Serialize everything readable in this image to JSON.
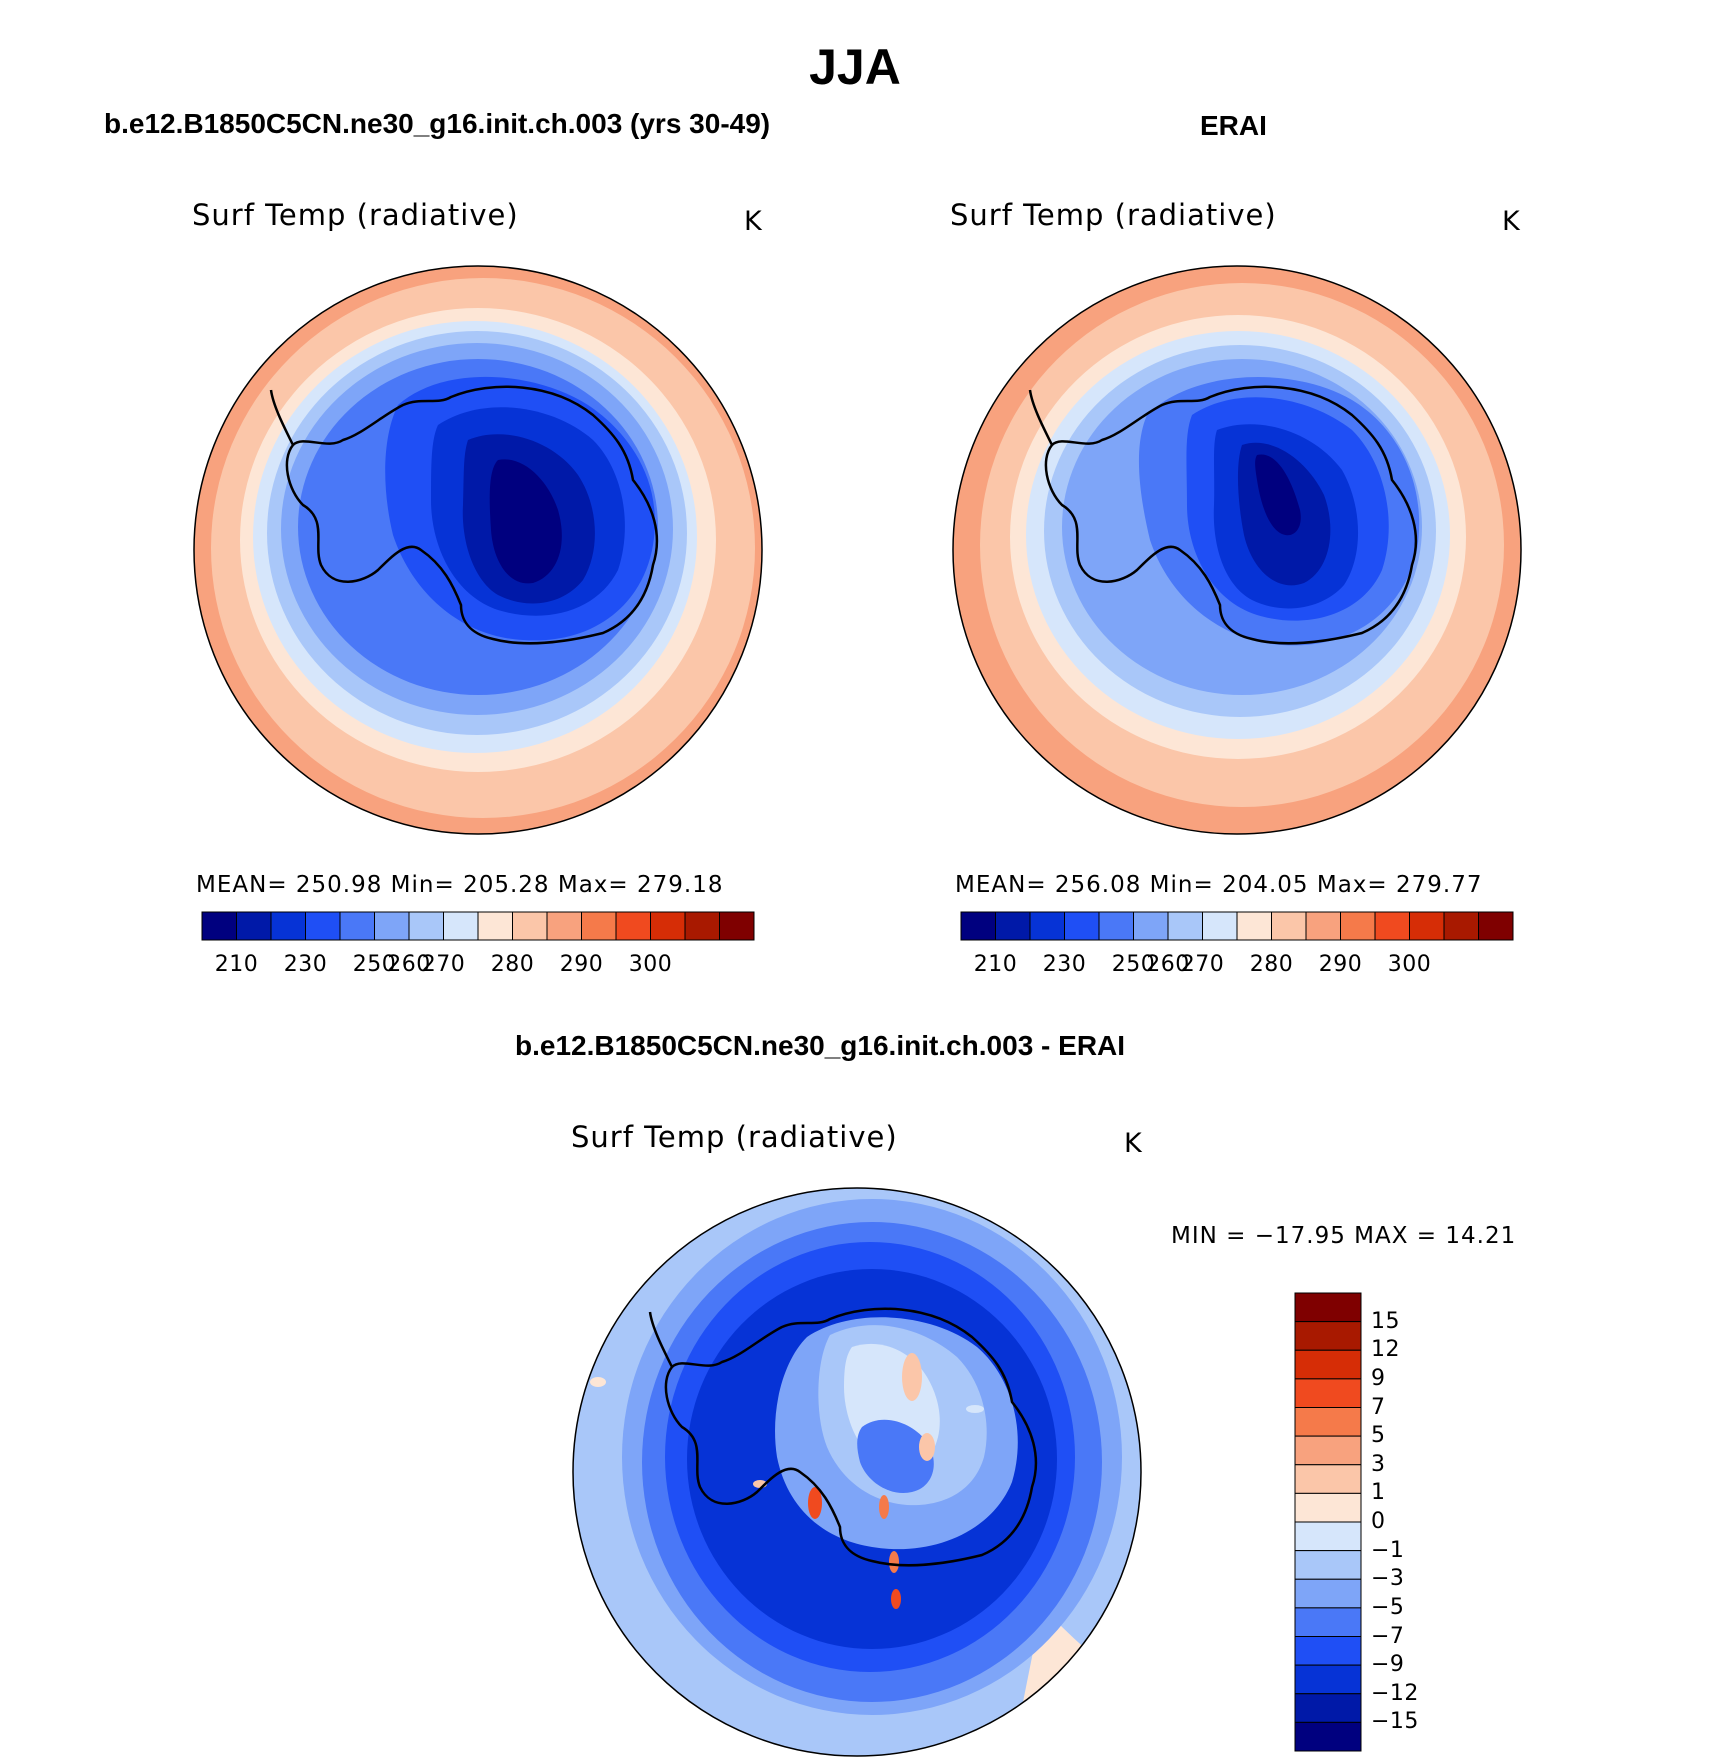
{
  "title": "JJA",
  "panels": [
    {
      "id": "model",
      "title": "b.e12.B1850C5CN.ne30_g16.init.ch.003 (yrs 30-49)",
      "variable": "Surf Temp (radiative)",
      "units": "K",
      "stats": "MEAN=  250.98   Min=  205.28   Max=  279.18",
      "colorbar_labels": [
        "210",
        "230",
        "250",
        "260",
        "270",
        "280",
        "290",
        "300"
      ]
    },
    {
      "id": "obs",
      "title": "ERAI",
      "variable": "Surf Temp (radiative)",
      "units": "K",
      "stats": "MEAN=  256.08   Min=  204.05   Max=  279.77",
      "colorbar_labels": [
        "210",
        "230",
        "250",
        "260",
        "270",
        "280",
        "290",
        "300"
      ]
    },
    {
      "id": "diff",
      "title": "b.e12.B1850C5CN.ne30_g16.init.ch.003 - ERAI",
      "variable": "Surf Temp (radiative)",
      "units": "K",
      "stats": "MIN  =  −17.95  MAX  =    14.21",
      "colorbar_labels": [
        "15",
        "12",
        "9",
        "7",
        "5",
        "3",
        "1",
        "0",
        "−1",
        "−3",
        "−5",
        "−7",
        "−9",
        "−12",
        "−15"
      ]
    }
  ],
  "colors": {
    "abs_scale": [
      "#00007f",
      "#0019a8",
      "#0633d6",
      "#1f4ff5",
      "#4a78f7",
      "#7ea5f8",
      "#a9c7f9",
      "#d6e6fb",
      "#fde6d6",
      "#fbc6a9",
      "#f8a27e",
      "#f57a4a",
      "#f04a1f",
      "#d62d06",
      "#a81900",
      "#7f0000"
    ],
    "diff_scale": [
      "#00007f",
      "#0019a8",
      "#0633d6",
      "#1f4ff5",
      "#4a78f7",
      "#7ea5f8",
      "#a9c7f9",
      "#d6e6fb",
      "#fde6d6",
      "#fbc6a9",
      "#f8a27e",
      "#f57a4a",
      "#f04a1f",
      "#d62d06",
      "#a81900",
      "#7f0000"
    ]
  }
}
